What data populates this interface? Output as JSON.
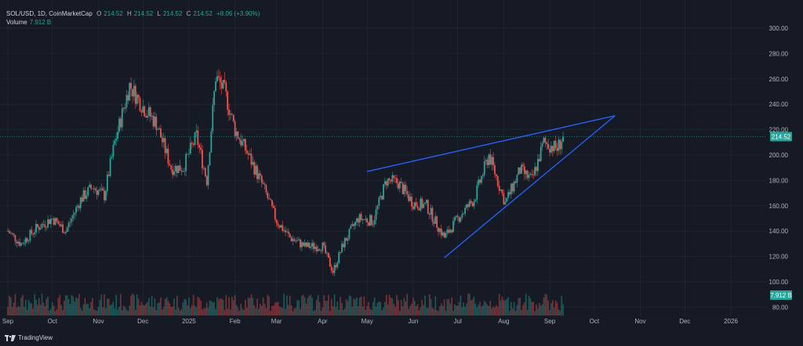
{
  "header": {
    "symbol": "SOL/USD, 1D, CoinMarketCap",
    "o_label": "O",
    "o_value": "214.52",
    "h_label": "H",
    "h_value": "214.52",
    "l_label": "L",
    "l_value": "214.52",
    "c_label": "C",
    "c_value": "214.52",
    "change": "+8.06 (+3.90%)",
    "volume_label": "Volume",
    "volume_value": "7.912 B"
  },
  "branding": {
    "name": "TradingView"
  },
  "colors": {
    "up": "#26a69a",
    "down": "#ef5350",
    "trendline": "#2962ff",
    "background": "#161a25",
    "grid": "#2a2e39"
  },
  "chart_data": {
    "type": "candlestick",
    "title": "SOL/USD, 1D, CoinMarketCap",
    "ylim": [
      80,
      305
    ],
    "ytick_labels": [
      "300.00",
      "280.00",
      "260.00",
      "240.00",
      "220.00",
      "200.00",
      "180.00",
      "160.00",
      "140.00",
      "120.00",
      "100.00",
      "80.00"
    ],
    "xtick_labels": [
      "Sep",
      "Oct",
      "Nov",
      "Dec",
      "2025",
      "Feb",
      "Mar",
      "Apr",
      "May",
      "Jun",
      "Jul",
      "Aug",
      "Sep",
      "Oct",
      "Nov",
      "Dec",
      "2026"
    ],
    "last_price": 214.52,
    "last_price_label": "214.52",
    "volume_badge": "7.912 B",
    "trend_points": [
      {
        "date": "2024-09-01",
        "close": 140
      },
      {
        "date": "2024-09-10",
        "close": 130
      },
      {
        "date": "2024-09-20",
        "close": 142
      },
      {
        "date": "2024-10-01",
        "close": 150
      },
      {
        "date": "2024-10-10",
        "close": 140
      },
      {
        "date": "2024-10-20",
        "close": 165
      },
      {
        "date": "2024-10-28",
        "close": 175
      },
      {
        "date": "2024-11-05",
        "close": 168
      },
      {
        "date": "2024-11-12",
        "close": 210
      },
      {
        "date": "2024-11-22",
        "close": 255
      },
      {
        "date": "2024-12-01",
        "close": 238
      },
      {
        "date": "2024-12-10",
        "close": 225
      },
      {
        "date": "2024-12-20",
        "close": 190
      },
      {
        "date": "2024-12-28",
        "close": 190
      },
      {
        "date": "2025-01-06",
        "close": 215
      },
      {
        "date": "2025-01-13",
        "close": 180
      },
      {
        "date": "2025-01-19",
        "close": 262
      },
      {
        "date": "2025-01-25",
        "close": 250
      },
      {
        "date": "2025-02-01",
        "close": 220
      },
      {
        "date": "2025-02-10",
        "close": 200
      },
      {
        "date": "2025-02-20",
        "close": 175
      },
      {
        "date": "2025-03-01",
        "close": 148
      },
      {
        "date": "2025-03-10",
        "close": 135
      },
      {
        "date": "2025-03-20",
        "close": 128
      },
      {
        "date": "2025-04-01",
        "close": 128
      },
      {
        "date": "2025-04-08",
        "close": 108
      },
      {
        "date": "2025-04-15",
        "close": 130
      },
      {
        "date": "2025-04-25",
        "close": 150
      },
      {
        "date": "2025-05-05",
        "close": 148
      },
      {
        "date": "2025-05-14",
        "close": 180
      },
      {
        "date": "2025-05-22",
        "close": 178
      },
      {
        "date": "2025-06-01",
        "close": 162
      },
      {
        "date": "2025-06-10",
        "close": 160
      },
      {
        "date": "2025-06-22",
        "close": 135
      },
      {
        "date": "2025-07-01",
        "close": 150
      },
      {
        "date": "2025-07-12",
        "close": 165
      },
      {
        "date": "2025-07-22",
        "close": 200
      },
      {
        "date": "2025-08-02",
        "close": 162
      },
      {
        "date": "2025-08-12",
        "close": 188
      },
      {
        "date": "2025-08-20",
        "close": 180
      },
      {
        "date": "2025-08-28",
        "close": 210
      },
      {
        "date": "2025-09-06",
        "close": 205
      },
      {
        "date": "2025-09-10",
        "close": 214.52
      }
    ],
    "trendlines": [
      {
        "name": "",
        "from": {
          "date": "2025-05-01",
          "price": 187
        },
        "to": {
          "date": "2025-10-15",
          "price": 231
        }
      },
      {
        "name": "",
        "from": {
          "date": "2025-06-22",
          "price": 119
        },
        "to": {
          "date": "2025-10-15",
          "price": 231
        }
      }
    ],
    "grid": true
  }
}
